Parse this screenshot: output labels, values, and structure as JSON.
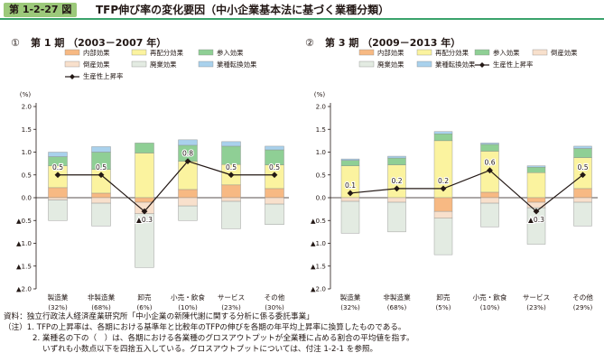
{
  "figure": {
    "label": "第 1-2-27 図",
    "title": "TFP伸び率の変化要因（中小企業基本法に基づく業種分類）"
  },
  "colors": {
    "inner_effect": "#f7b983",
    "realloc_effect": "#fbf39f",
    "entry_effect": "#8fcf95",
    "bankrupt_effect": "#f8e0cc",
    "exit_effect": "#e3ebe2",
    "industry_shift_effect": "#a9d1ec",
    "tfp_line": "#231815"
  },
  "notes": {
    "source": "資料：独立行政法人経済産業研究所「中小企業の新陳代謝に関する分析に係る委託事業」",
    "note1": "（注）1. TFPの上昇率は、各期における基準年と比較年のTFPの伸びを各期の年平均上昇率に換算したものである。",
    "note2": "2. 業種名の下の（　）は、各期における各業種のグロスアウトプットが全業種に占める割合の平均値を指す。",
    "note3": "いずれも小数点以下を四捨五入している。グロスアウトプットについては、付注 1-2-1 を参照。"
  },
  "chart_data": [
    {
      "type": "bar",
      "panel_number": "①",
      "title": "第 1 期 （2003－2007 年）",
      "ylabel": "(%)",
      "ylim": [
        -2.0,
        2.0
      ],
      "yticks": [
        "2.0",
        "1.5",
        "1.0",
        "0.5",
        "0.0",
        "▲0.5",
        "▲1.0",
        "▲1.5",
        "▲2.0"
      ],
      "categories": [
        "製造業",
        "非製造業",
        "卸売",
        "小売・飲食",
        "サービス",
        "その他"
      ],
      "category_shares": [
        "(32%)",
        "(68%)",
        "(6%)",
        "(10%)",
        "(23%)",
        "(30%)"
      ],
      "series": [
        {
          "name": "内部効果",
          "color_key": "inner_effect",
          "values": [
            0.22,
            0.1,
            -0.1,
            0.18,
            0.28,
            0.2
          ]
        },
        {
          "name": "再配分効果",
          "color_key": "realloc_effect",
          "values": [
            0.48,
            0.52,
            0.98,
            0.62,
            0.45,
            0.52
          ]
        },
        {
          "name": "参入効果",
          "color_key": "entry_effect",
          "values": [
            0.2,
            0.38,
            0.22,
            0.35,
            0.4,
            0.33
          ]
        },
        {
          "name": "倒産効果",
          "color_key": "bankrupt_effect",
          "values": [
            -0.05,
            -0.12,
            -0.25,
            -0.18,
            -0.08,
            -0.14
          ]
        },
        {
          "name": "廃業効果",
          "color_key": "exit_effect",
          "values": [
            -0.45,
            -0.5,
            -1.18,
            -0.32,
            -0.6,
            -0.45
          ]
        },
        {
          "name": "業種転換効果",
          "color_key": "industry_shift_effect",
          "values": [
            0.1,
            0.12,
            0.0,
            0.12,
            0.1,
            0.08
          ]
        }
      ],
      "line": {
        "name": "生産性上昇率",
        "values": [
          0.5,
          0.5,
          -0.3,
          0.8,
          0.5,
          0.5
        ],
        "labels": [
          "0.5",
          "0.5",
          "▲0.3",
          "0.8",
          "0.5",
          "0.5"
        ]
      },
      "legend": {
        "rows": [
          [
            "内部効果",
            "再配分効果",
            "参入効果"
          ],
          [
            "倒産効果",
            "廃業効果",
            "業種転換効果"
          ]
        ],
        "line_label": "生産性上昇率"
      }
    },
    {
      "type": "bar",
      "panel_number": "②",
      "title": "第 3 期 （2009－2013 年）",
      "ylabel": "(%)",
      "ylim": [
        -2.0,
        2.0
      ],
      "yticks": [
        "2.0",
        "1.5",
        "1.0",
        "0.5",
        "0.0",
        "▲0.5",
        "▲1.0",
        "▲1.5",
        "▲2.0"
      ],
      "categories": [
        "製造業",
        "非製造業",
        "卸売",
        "小売・飲食",
        "サービス",
        "その他"
      ],
      "category_shares": [
        "(32%)",
        "(68%)",
        "(5%)",
        "(10%)",
        "(23%)",
        "(29%)"
      ],
      "series": [
        {
          "name": "内部効果",
          "color_key": "inner_effect",
          "values": [
            0.0,
            0.0,
            -0.3,
            0.12,
            -0.1,
            0.2
          ]
        },
        {
          "name": "再配分効果",
          "color_key": "realloc_effect",
          "values": [
            0.7,
            0.72,
            1.25,
            0.9,
            0.55,
            0.68
          ]
        },
        {
          "name": "参入効果",
          "color_key": "entry_effect",
          "values": [
            0.12,
            0.15,
            0.15,
            0.15,
            0.12,
            0.2
          ]
        },
        {
          "name": "倒産効果",
          "color_key": "bankrupt_effect",
          "values": [
            -0.08,
            -0.1,
            -0.15,
            -0.12,
            -0.12,
            -0.1
          ]
        },
        {
          "name": "廃業効果",
          "color_key": "exit_effect",
          "values": [
            -0.7,
            -0.65,
            -0.8,
            -0.52,
            -0.8,
            -0.52
          ]
        },
        {
          "name": "業種転換効果",
          "color_key": "industry_shift_effect",
          "values": [
            0.03,
            0.04,
            0.05,
            0.03,
            0.03,
            0.05
          ]
        }
      ],
      "line": {
        "name": "生産性上昇率",
        "values": [
          0.1,
          0.2,
          0.2,
          0.6,
          -0.3,
          0.5
        ],
        "labels": [
          "0.1",
          "0.2",
          "0.2",
          "0.6",
          "▲0.3",
          "0.5"
        ]
      },
      "legend": {
        "rows": [
          [
            "内部効果",
            "再配分効果",
            "参入効果",
            "倒産効果"
          ],
          [
            "廃業効果",
            "業種転換効果",
            "生産性上昇率"
          ]
        ],
        "line_label": "生産性上昇率"
      }
    }
  ]
}
